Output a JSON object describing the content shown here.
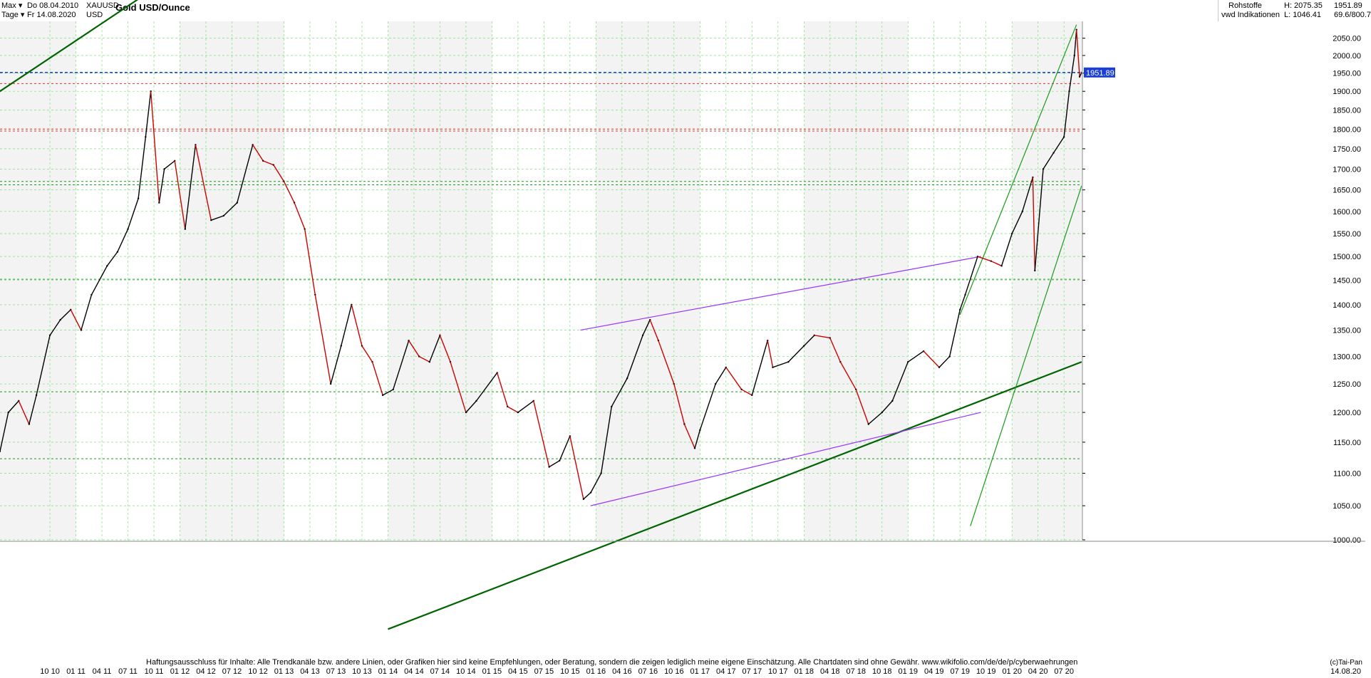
{
  "header": {
    "range_label": "Max",
    "interval_label": "Tage",
    "date_from": "Do 08.04.2010",
    "date_to": "Fr 14.08.2020",
    "symbol": "XAUUSD",
    "currency": "USD",
    "title": "Gold USD/Ounce",
    "category": "Rohstoffe",
    "source": "vwd Indikationen",
    "high_label": "H: 2075.35",
    "low_label": "L: 1046.41",
    "last_price": "1951.89",
    "extra": "69.6/800.7"
  },
  "colors": {
    "trend_dark_green": "#006400",
    "trend_green": "#1a9a1a",
    "trend_purple": "#9933ff",
    "resistance_red": "#e03030",
    "price_blue": "#1a3fd6",
    "cyan": "#33ccff",
    "magenta": "#e033e0",
    "candle_up": "#000000",
    "candle_down": "#d00000"
  },
  "chart_data": {
    "type": "line",
    "title": "Gold USD/Ounce",
    "xlabel": "",
    "ylabel": "",
    "ylim": [
      1000,
      2100
    ],
    "grid": true,
    "scale": "log",
    "y_ticks": [
      "1000.00",
      "1050.00",
      "1100.00",
      "1150.00",
      "1200.00",
      "1250.00",
      "1300.00",
      "1350.00",
      "1400.00",
      "1450.00",
      "1500.00",
      "1550.00",
      "1600.00",
      "1650.00",
      "1700.00",
      "1750.00",
      "1800.00",
      "1850.00",
      "1900.00",
      "1950.00",
      "2000.00",
      "2050.00"
    ],
    "y_tick_values": [
      1000,
      1050,
      1100,
      1150,
      1200,
      1250,
      1300,
      1350,
      1400,
      1450,
      1500,
      1550,
      1600,
      1650,
      1700,
      1750,
      1800,
      1850,
      1900,
      1950,
      2000,
      2050
    ],
    "x_ticks": [
      "10 10",
      "01 11",
      "04 11",
      "07 11",
      "10 11",
      "01 12",
      "04 12",
      "07 12",
      "10 12",
      "01 13",
      "04 13",
      "07 13",
      "10 13",
      "01 14",
      "04 14",
      "07 14",
      "10 14",
      "01 15",
      "04 15",
      "07 15",
      "10 15",
      "01 16",
      "04 16",
      "07 16",
      "10 16",
      "01 17",
      "04 17",
      "07 17",
      "10 17",
      "01 18",
      "04 18",
      "07 18",
      "10 18",
      "01 19",
      "04 19",
      "07 19",
      "10 19",
      "01 20",
      "04 20",
      "07 20"
    ],
    "x_tick_values": [
      2010.75,
      2011.0,
      2011.25,
      2011.5,
      2011.75,
      2012.0,
      2012.25,
      2012.5,
      2012.75,
      2013.0,
      2013.25,
      2013.5,
      2013.75,
      2014.0,
      2014.25,
      2014.5,
      2014.75,
      2015.0,
      2015.25,
      2015.5,
      2015.75,
      2016.0,
      2016.25,
      2016.5,
      2016.75,
      2017.0,
      2017.25,
      2017.5,
      2017.75,
      2018.0,
      2018.25,
      2018.5,
      2018.75,
      2019.0,
      2019.25,
      2019.5,
      2019.75,
      2020.0,
      2020.25,
      2020.5
    ],
    "x_last_label": "14.08.20",
    "xlim": [
      2010.27,
      2020.67
    ],
    "series": [
      {
        "name": "Gold USD/Ounce",
        "x": [
          2010.27,
          2010.35,
          2010.45,
          2010.55,
          2010.62,
          2010.75,
          2010.85,
          2010.95,
          2011.05,
          2011.15,
          2011.3,
          2011.4,
          2011.5,
          2011.6,
          2011.67,
          2011.72,
          2011.8,
          2011.85,
          2011.95,
          2012.05,
          2012.15,
          2012.3,
          2012.42,
          2012.55,
          2012.7,
          2012.8,
          2012.9,
          2013.0,
          2013.1,
          2013.2,
          2013.3,
          2013.45,
          2013.55,
          2013.65,
          2013.75,
          2013.85,
          2013.95,
          2014.05,
          2014.2,
          2014.3,
          2014.4,
          2014.5,
          2014.6,
          2014.75,
          2014.85,
          2015.05,
          2015.15,
          2015.25,
          2015.4,
          2015.55,
          2015.65,
          2015.75,
          2015.88,
          2015.95,
          2016.05,
          2016.15,
          2016.3,
          2016.45,
          2016.52,
          2016.6,
          2016.75,
          2016.85,
          2016.95,
          2017.0,
          2017.15,
          2017.25,
          2017.4,
          2017.5,
          2017.65,
          2017.7,
          2017.85,
          2018.0,
          2018.1,
          2018.25,
          2018.35,
          2018.5,
          2018.62,
          2018.75,
          2018.85,
          2019.0,
          2019.15,
          2019.3,
          2019.4,
          2019.5,
          2019.55,
          2019.67,
          2019.8,
          2019.9,
          2020.0,
          2020.1,
          2020.2,
          2020.22,
          2020.3,
          2020.4,
          2020.5,
          2020.55,
          2020.6,
          2020.62,
          2020.65,
          2020.67
        ],
        "y": [
          1135,
          1200,
          1220,
          1180,
          1230,
          1340,
          1370,
          1390,
          1350,
          1420,
          1480,
          1510,
          1560,
          1630,
          1780,
          1900,
          1620,
          1700,
          1720,
          1560,
          1760,
          1580,
          1590,
          1620,
          1760,
          1720,
          1710,
          1670,
          1620,
          1560,
          1420,
          1250,
          1320,
          1400,
          1320,
          1290,
          1230,
          1240,
          1330,
          1300,
          1290,
          1340,
          1290,
          1200,
          1220,
          1270,
          1210,
          1200,
          1220,
          1110,
          1120,
          1160,
          1060,
          1070,
          1100,
          1210,
          1260,
          1340,
          1370,
          1330,
          1250,
          1180,
          1140,
          1170,
          1250,
          1280,
          1240,
          1230,
          1330,
          1280,
          1290,
          1320,
          1340,
          1335,
          1290,
          1240,
          1180,
          1200,
          1220,
          1290,
          1310,
          1280,
          1300,
          1390,
          1420,
          1500,
          1490,
          1480,
          1550,
          1600,
          1680,
          1470,
          1700,
          1740,
          1780,
          1900,
          2000,
          2075,
          1940,
          1951.89
        ]
      }
    ],
    "lines": [
      {
        "name": "green upper channel",
        "x": [
          2010.0,
          2012.75
        ],
        "y": [
          1850,
          2430
        ]
      },
      {
        "name": "long-term support",
        "x": [
          2014.0,
          2020.67
        ],
        "y": [
          880,
          1290
        ]
      },
      {
        "name": "purple channel upper",
        "x": [
          2015.85,
          2019.7
        ],
        "y": [
          1350,
          1500
        ]
      },
      {
        "name": "purple channel lower",
        "x": [
          2015.95,
          2019.7
        ],
        "y": [
          1050,
          1200
        ]
      },
      {
        "name": "steep trend lower",
        "x": [
          2019.6,
          2020.67
        ],
        "y": [
          1020,
          1660
        ]
      },
      {
        "name": "steep trend upper",
        "x": [
          2019.5,
          2020.62
        ],
        "y": [
          1380,
          2090
        ]
      }
    ],
    "horizontal_levels": [
      1921,
      1795,
      1800,
      1951.89,
      1452,
      1236,
      1123,
      1670,
      1662
    ],
    "annotations": [
      "1951.89"
    ]
  },
  "footer": {
    "disclaimer": "Haftungsausschluss für Inhalte: Alle Trendkanäle bzw. andere Linien, oder Grafiken hier sind keine Empfehlungen, oder Beratung, sondern die zeigen lediglich meine eigene Einschätzung. Alle Chartdaten sind ohne Gewähr.  www.wikifolio.com/de/de/p/cyberwaehrungen",
    "copyright": "(c)Tai-Pan"
  }
}
